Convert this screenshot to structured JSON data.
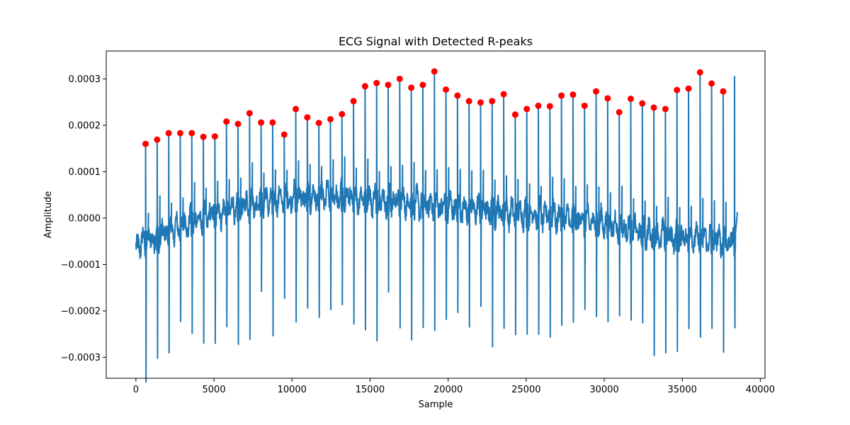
{
  "chart_data": {
    "type": "line",
    "title": "ECG Signal with Detected R-peaks",
    "xlabel": "Sample",
    "ylabel": "Amplitude",
    "xlim": [
      -1900,
      40300
    ],
    "ylim": [
      -0.000345,
      0.00036
    ],
    "xticks": [
      0,
      5000,
      10000,
      15000,
      20000,
      25000,
      30000,
      35000,
      40000
    ],
    "xtick_labels": [
      "0",
      "5000",
      "10000",
      "15000",
      "20000",
      "25000",
      "30000",
      "35000",
      "40000"
    ],
    "yticks": [
      -0.0003,
      -0.0002,
      -0.0001,
      0.0,
      0.0001,
      0.0002,
      0.0003
    ],
    "ytick_labels": [
      "−0.0003",
      "−0.0002",
      "−0.0001",
      "0.0000",
      "0.0001",
      "0.0002",
      "0.0003"
    ],
    "grid": false,
    "legend": "none",
    "signal_color": "#1f77b4",
    "peak_color": "#ff0000",
    "signal_range": [
      0,
      38400
    ],
    "series": [
      {
        "role": "peaks",
        "x": [
          620,
          1360,
          2100,
          2840,
          3580,
          4320,
          5060,
          5800,
          6540,
          7280,
          8020,
          8760,
          9500,
          10240,
          10980,
          11720,
          12460,
          13200,
          13940,
          14680,
          15420,
          16160,
          16900,
          17640,
          18380,
          19120,
          19860,
          20600,
          21340,
          22080,
          22820,
          23560,
          24300,
          25040,
          25780,
          26520,
          27260,
          28000,
          28740,
          29480,
          30220,
          30960,
          31700,
          32440,
          33180,
          33920,
          34660,
          35400,
          36140,
          36880,
          37620
        ],
        "y": [
          0.00016,
          0.000169,
          0.000183,
          0.000183,
          0.000183,
          0.000175,
          0.000176,
          0.000208,
          0.000203,
          0.000226,
          0.000206,
          0.000206,
          0.00018,
          0.000235,
          0.000217,
          0.000205,
          0.000213,
          0.000224,
          0.000252,
          0.000284,
          0.000291,
          0.000287,
          0.0003,
          0.000281,
          0.000287,
          0.000316,
          0.000277,
          0.000264,
          0.000252,
          0.000249,
          0.000252,
          0.000267,
          0.000223,
          0.000235,
          0.000242,
          0.000241,
          0.000264,
          0.000266,
          0.000242,
          0.000273,
          0.000258,
          0.000228,
          0.000257,
          0.000247,
          0.000238,
          0.000235,
          0.000276,
          0.000279,
          0.000314,
          0.00029,
          0.000273
        ]
      }
    ]
  }
}
